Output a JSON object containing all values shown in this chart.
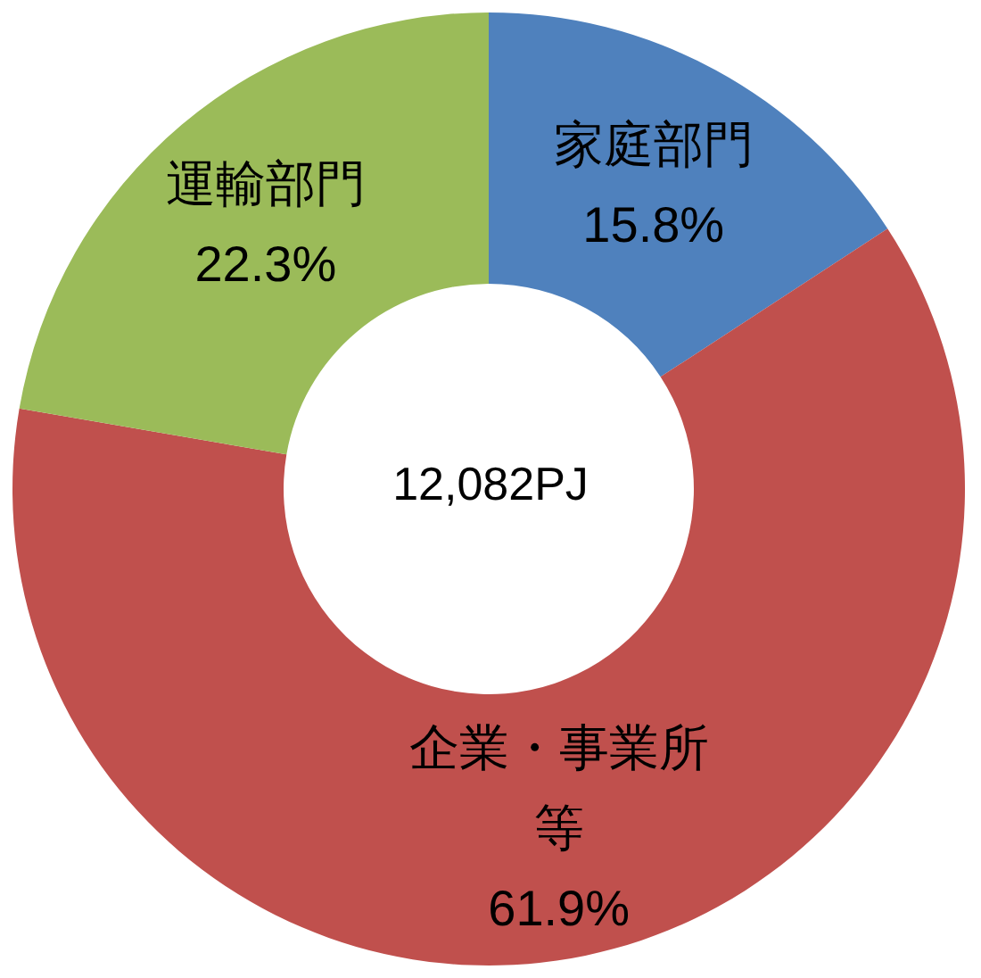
{
  "chart_data": {
    "type": "donut",
    "categories": [
      "家庭部門",
      "企業・事業所等",
      "運輸部門"
    ],
    "values": [
      15.8,
      61.9,
      22.3
    ],
    "colors": [
      "#4f81bd",
      "#c0504d",
      "#9bbb59"
    ],
    "value_labels": [
      "15.8%",
      "61.9%",
      "22.3%"
    ],
    "annotations": [
      "12,082PJ"
    ]
  }
}
